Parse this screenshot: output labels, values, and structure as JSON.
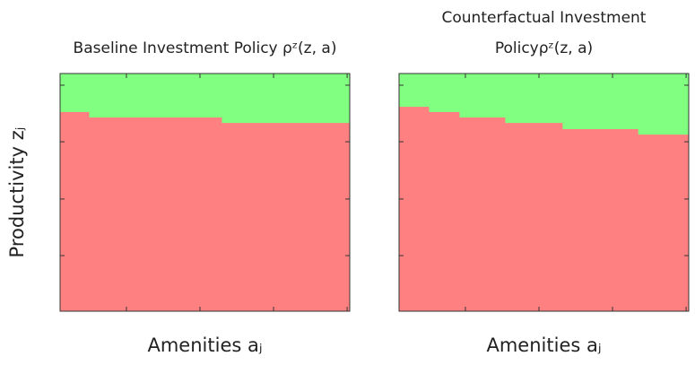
{
  "chart_data": [
    {
      "type": "step",
      "title": [
        "Baseline Investment Policy ρᶻ(z, a)"
      ],
      "xlabel": "Amenities aⱼ",
      "ylabel": "Productivity zⱼ",
      "x": [
        0,
        0.099,
        0.557
      ],
      "values": [
        0.838,
        0.815,
        0.792
      ],
      "below_color": "#ff8080",
      "above_color": "#80ff80",
      "xlim": [
        0,
        1
      ],
      "ylim": [
        0,
        1
      ],
      "xticks": [
        0.229,
        0.483,
        0.737,
        0.991
      ],
      "yticks": [
        0.234,
        0.472,
        0.713,
        0.951
      ]
    },
    {
      "type": "step",
      "title": [
        "Counterfactual Investment",
        "Policyρᶻ(z, a)"
      ],
      "xlabel": "Amenities aⱼ",
      "x": [
        0,
        0.102,
        0.207,
        0.365,
        0.563,
        0.824
      ],
      "values": [
        0.86,
        0.838,
        0.815,
        0.792,
        0.766,
        0.743
      ],
      "below_color": "#ff8080",
      "above_color": "#80ff80",
      "xlim": [
        0,
        1
      ],
      "ylim": [
        0,
        1
      ],
      "xticks": [
        0.229,
        0.483,
        0.737,
        0.991
      ],
      "yticks": [
        0.234,
        0.472,
        0.713,
        0.951
      ]
    }
  ]
}
